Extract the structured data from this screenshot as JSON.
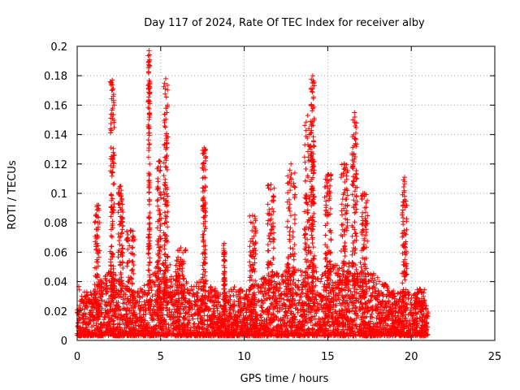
{
  "colors": {
    "points": "#ff0000",
    "grid": "#a0a0a0",
    "axis": "#000000",
    "background": "#ffffff"
  },
  "chart_data": {
    "type": "scatter",
    "marker": "plus",
    "title": "Day 117 of 2024, Rate Of TEC Index for receiver alby",
    "xlabel": "GPS time / hours",
    "ylabel": "ROTI / TECUs",
    "xlim": [
      0,
      25
    ],
    "ylim": [
      0,
      0.2
    ],
    "xticks": [
      0,
      5,
      10,
      15,
      20,
      25
    ],
    "yticks": [
      0,
      0.02,
      0.04,
      0.06,
      0.08,
      0.1,
      0.12,
      0.14,
      0.16,
      0.18,
      0.2
    ],
    "ytick_labels": [
      "0",
      "0.02",
      "0.04",
      "0.06",
      "0.08",
      "0.1",
      "0.12",
      "0.14",
      "0.16",
      "0.18",
      "0.2"
    ],
    "grid": true,
    "data_span_hours": [
      0,
      21
    ],
    "baseline_envelope": [
      [
        0.0,
        0.035
      ],
      [
        0.5,
        0.03
      ],
      [
        1.0,
        0.035
      ],
      [
        1.5,
        0.04
      ],
      [
        2.0,
        0.045
      ],
      [
        2.5,
        0.04
      ],
      [
        3.0,
        0.035
      ],
      [
        3.5,
        0.03
      ],
      [
        4.0,
        0.035
      ],
      [
        4.5,
        0.045
      ],
      [
        5.0,
        0.05
      ],
      [
        5.5,
        0.05
      ],
      [
        6.0,
        0.045
      ],
      [
        6.5,
        0.04
      ],
      [
        7.0,
        0.035
      ],
      [
        7.5,
        0.04
      ],
      [
        8.0,
        0.035
      ],
      [
        8.5,
        0.03
      ],
      [
        9.0,
        0.03
      ],
      [
        9.5,
        0.035
      ],
      [
        10.0,
        0.03
      ],
      [
        10.5,
        0.035
      ],
      [
        11.0,
        0.04
      ],
      [
        11.5,
        0.04
      ],
      [
        12.0,
        0.045
      ],
      [
        12.5,
        0.045
      ],
      [
        13.0,
        0.045
      ],
      [
        13.5,
        0.045
      ],
      [
        14.0,
        0.05
      ],
      [
        14.5,
        0.045
      ],
      [
        15.0,
        0.05
      ],
      [
        15.5,
        0.05
      ],
      [
        16.0,
        0.05
      ],
      [
        16.5,
        0.05
      ],
      [
        17.0,
        0.05
      ],
      [
        17.5,
        0.045
      ],
      [
        18.0,
        0.04
      ],
      [
        18.5,
        0.035
      ],
      [
        19.0,
        0.03
      ],
      [
        19.5,
        0.03
      ],
      [
        20.0,
        0.03
      ],
      [
        20.5,
        0.025
      ],
      [
        21.0,
        0.02
      ]
    ],
    "bursts": [
      {
        "center": 1.2,
        "width": 0.15,
        "max": 0.092
      },
      {
        "center": 2.1,
        "width": 0.12,
        "max": 0.177
      },
      {
        "center": 2.6,
        "width": 0.15,
        "max": 0.105
      },
      {
        "center": 3.2,
        "width": 0.25,
        "max": 0.075
      },
      {
        "center": 4.3,
        "width": 0.05,
        "max": 0.197
      },
      {
        "center": 4.9,
        "width": 0.12,
        "max": 0.122
      },
      {
        "center": 5.3,
        "width": 0.12,
        "max": 0.178
      },
      {
        "center": 6.2,
        "width": 0.3,
        "max": 0.063
      },
      {
        "center": 7.6,
        "width": 0.1,
        "max": 0.131
      },
      {
        "center": 8.8,
        "width": 0.05,
        "max": 0.066
      },
      {
        "center": 10.5,
        "width": 0.2,
        "max": 0.085
      },
      {
        "center": 11.6,
        "width": 0.2,
        "max": 0.106
      },
      {
        "center": 12.8,
        "width": 0.25,
        "max": 0.12
      },
      {
        "center": 13.8,
        "width": 0.2,
        "max": 0.153
      },
      {
        "center": 14.1,
        "width": 0.1,
        "max": 0.18
      },
      {
        "center": 15.0,
        "width": 0.2,
        "max": 0.113
      },
      {
        "center": 16.0,
        "width": 0.2,
        "max": 0.12
      },
      {
        "center": 16.6,
        "width": 0.15,
        "max": 0.155
      },
      {
        "center": 17.2,
        "width": 0.2,
        "max": 0.1
      },
      {
        "center": 19.6,
        "width": 0.15,
        "max": 0.111
      },
      {
        "center": 20.5,
        "width": 0.3,
        "max": 0.035
      }
    ]
  }
}
